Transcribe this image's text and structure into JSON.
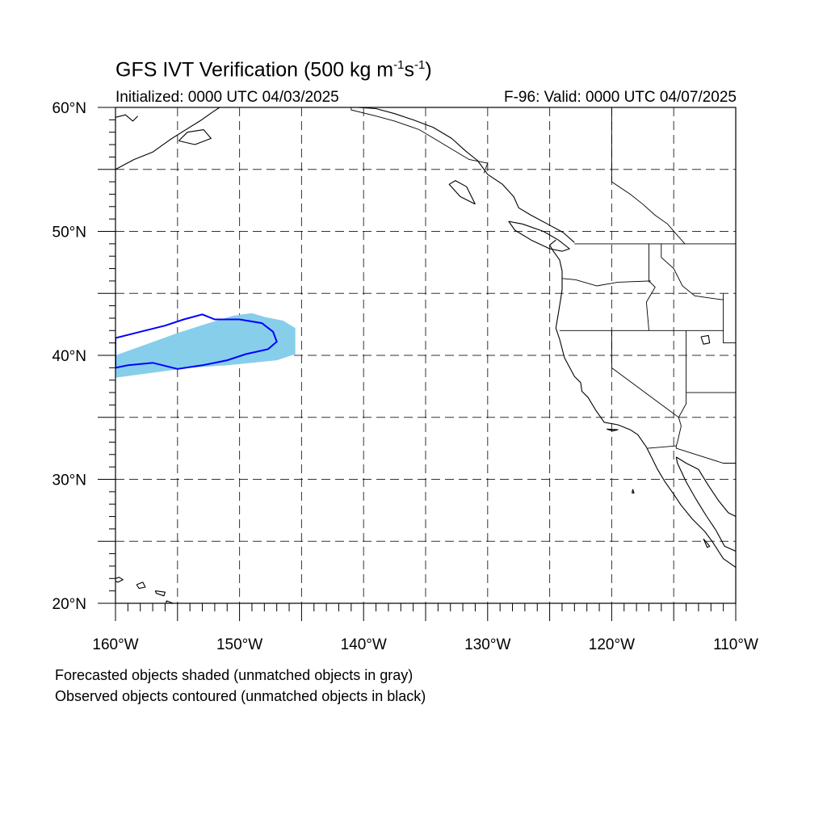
{
  "header": {
    "title_main": "GFS IVT Verification (500 kg m",
    "title_exp1": "-1",
    "title_mid": "s",
    "title_exp2": "-1",
    "title_end": ")",
    "initialized": "Initialized: 0000 UTC 04/03/2025",
    "valid": "F-96: Valid: 0000 UTC 04/07/2025"
  },
  "map": {
    "lon_range": [
      -160,
      -110
    ],
    "lat_range": [
      20,
      60
    ],
    "lat_ticks": [
      {
        "value": 60,
        "label": "60°N"
      },
      {
        "value": 50,
        "label": "50°N"
      },
      {
        "value": 40,
        "label": "40°N"
      },
      {
        "value": 30,
        "label": "30°N"
      },
      {
        "value": 20,
        "label": "20°N"
      }
    ],
    "lon_ticks": [
      {
        "value": -160,
        "label": "160°W"
      },
      {
        "value": -150,
        "label": "150°W"
      },
      {
        "value": -140,
        "label": "140°W"
      },
      {
        "value": -130,
        "label": "130°W"
      },
      {
        "value": -120,
        "label": "120°W"
      },
      {
        "value": -110,
        "label": "110°W"
      }
    ],
    "grid_spacing_deg": 5,
    "grid_style": "dashed",
    "colors": {
      "forecast_matched": "#87ceeb",
      "observed_matched": "#0000ff",
      "coastline": "#000000"
    }
  },
  "forecast_object": {
    "color": "#87ceeb",
    "polygon_lonlat": [
      [
        -160,
        38.2
      ],
      [
        -157,
        38.6
      ],
      [
        -154,
        39.0
      ],
      [
        -151,
        39.2
      ],
      [
        -149,
        39.4
      ],
      [
        -147,
        39.6
      ],
      [
        -145.5,
        40.1
      ],
      [
        -145.5,
        42.2
      ],
      [
        -146.5,
        42.8
      ],
      [
        -148,
        43.1
      ],
      [
        -149,
        43.4
      ],
      [
        -150.5,
        43.2
      ],
      [
        -152.5,
        42.6
      ],
      [
        -155,
        41.8
      ],
      [
        -157.5,
        40.9
      ],
      [
        -160,
        40.0
      ]
    ]
  },
  "observed_object": {
    "color": "#0000ff",
    "polygon_lonlat": [
      [
        -160,
        41.4
      ],
      [
        -158,
        41.9
      ],
      [
        -156,
        42.4
      ],
      [
        -154.5,
        42.9
      ],
      [
        -153,
        43.3
      ],
      [
        -152,
        42.9
      ],
      [
        -150,
        42.9
      ],
      [
        -148.2,
        42.6
      ],
      [
        -147.3,
        41.9
      ],
      [
        -147,
        41.1
      ],
      [
        -147.7,
        40.5
      ],
      [
        -149.5,
        40.1
      ],
      [
        -151,
        39.6
      ],
      [
        -153,
        39.2
      ],
      [
        -155,
        38.9
      ],
      [
        -157,
        39.4
      ],
      [
        -159,
        39.2
      ],
      [
        -160,
        39.0
      ]
    ]
  },
  "coastlines": [
    {
      "name": "west-coast",
      "points_lonlat": [
        [
          -124.5,
          49.3
        ],
        [
          -125.0,
          48.9
        ],
        [
          -124.7,
          48.4
        ],
        [
          -124.2,
          47.7
        ],
        [
          -124.0,
          46.8
        ],
        [
          -124.0,
          46.1
        ],
        [
          -124.0,
          45.3
        ],
        [
          -124.1,
          44.6
        ],
        [
          -124.3,
          43.4
        ],
        [
          -124.5,
          42.2
        ],
        [
          -124.2,
          41.3
        ],
        [
          -123.8,
          39.8
        ],
        [
          -123.0,
          38.3
        ],
        [
          -122.5,
          37.8
        ],
        [
          -122.4,
          37.1
        ],
        [
          -121.9,
          36.6
        ],
        [
          -121.3,
          35.6
        ],
        [
          -120.6,
          34.6
        ],
        [
          -119.5,
          34.4
        ],
        [
          -118.5,
          34.0
        ],
        [
          -117.9,
          33.6
        ],
        [
          -117.2,
          32.6
        ],
        [
          -116.8,
          31.8
        ],
        [
          -116.3,
          30.8
        ],
        [
          -115.7,
          29.8
        ],
        [
          -115.0,
          28.8
        ],
        [
          -114.4,
          27.9
        ],
        [
          -113.5,
          26.8
        ],
        [
          -112.5,
          25.8
        ],
        [
          -111.9,
          25.0
        ],
        [
          -111.0,
          23.6
        ],
        [
          -110.0,
          22.9
        ]
      ]
    },
    {
      "name": "baja-east-coast",
      "points_lonlat": [
        [
          -110.0,
          24.2
        ],
        [
          -110.9,
          24.6
        ],
        [
          -111.6,
          25.9
        ],
        [
          -112.4,
          27.1
        ],
        [
          -113.2,
          28.4
        ],
        [
          -114.0,
          29.8
        ],
        [
          -114.7,
          31.3
        ],
        [
          -114.8,
          31.8
        ]
      ]
    },
    {
      "name": "mainland-mexico-coast",
      "points_lonlat": [
        [
          -114.8,
          31.8
        ],
        [
          -114.0,
          31.3
        ],
        [
          -113.0,
          30.8
        ],
        [
          -112.2,
          29.5
        ],
        [
          -111.4,
          28.3
        ],
        [
          -110.6,
          27.3
        ],
        [
          -110.0,
          27.0
        ]
      ]
    },
    {
      "name": "vancouver-island",
      "points_lonlat": [
        [
          -124.0,
          48.4
        ],
        [
          -125.0,
          48.6
        ],
        [
          -126.5,
          49.3
        ],
        [
          -127.8,
          50.1
        ],
        [
          -128.3,
          50.8
        ],
        [
          -127.2,
          50.6
        ],
        [
          -125.5,
          50.0
        ],
        [
          -124.3,
          49.3
        ],
        [
          -123.4,
          48.6
        ],
        [
          -124.0,
          48.4
        ]
      ]
    },
    {
      "name": "bc-coast",
      "points_lonlat": [
        [
          -123.0,
          49.1
        ],
        [
          -123.9,
          49.9
        ],
        [
          -125.0,
          50.5
        ],
        [
          -126.5,
          51.3
        ],
        [
          -127.5,
          51.9
        ],
        [
          -127.9,
          52.8
        ],
        [
          -128.8,
          53.8
        ],
        [
          -130.0,
          54.6
        ],
        [
          -130.8,
          55.7
        ],
        [
          -131.8,
          56.5
        ],
        [
          -132.9,
          57.5
        ],
        [
          -134.4,
          58.4
        ],
        [
          -136.0,
          59.0
        ],
        [
          -137.5,
          59.5
        ],
        [
          -139.0,
          59.9
        ],
        [
          -140.5,
          60.0
        ]
      ]
    },
    {
      "name": "haida-gwaii",
      "points_lonlat": [
        [
          -131.0,
          52.2
        ],
        [
          -132.2,
          52.8
        ],
        [
          -133.1,
          53.8
        ],
        [
          -132.6,
          54.1
        ],
        [
          -131.7,
          53.6
        ],
        [
          -131.0,
          52.2
        ]
      ]
    },
    {
      "name": "alaska-coast",
      "points_lonlat": [
        [
          -160,
          55.0
        ],
        [
          -158.5,
          55.8
        ],
        [
          -157.0,
          56.4
        ],
        [
          -155.6,
          57.4
        ],
        [
          -154.5,
          58.1
        ],
        [
          -153.2,
          58.9
        ],
        [
          -152.2,
          59.6
        ],
        [
          -151.6,
          60.0
        ]
      ]
    },
    {
      "name": "alaska-west-top",
      "points_lonlat": [
        [
          -160,
          59.2
        ],
        [
          -159.2,
          59.4
        ],
        [
          -158.6,
          58.9
        ],
        [
          -158.2,
          59.3
        ]
      ]
    },
    {
      "name": "kodiak",
      "points_lonlat": [
        [
          -154.9,
          57.3
        ],
        [
          -153.6,
          57.0
        ],
        [
          -152.3,
          57.5
        ],
        [
          -152.9,
          58.2
        ],
        [
          -154.2,
          58.0
        ],
        [
          -154.9,
          57.3
        ]
      ]
    },
    {
      "name": "hawaii-niihau",
      "points_lonlat": [
        [
          -160.3,
          21.9
        ],
        [
          -159.7,
          22.1
        ],
        [
          -159.4,
          21.9
        ],
        [
          -159.8,
          21.7
        ],
        [
          -160.3,
          21.9
        ]
      ]
    },
    {
      "name": "hawaii-oahu",
      "points_lonlat": [
        [
          -158.3,
          21.5
        ],
        [
          -157.8,
          21.7
        ],
        [
          -157.6,
          21.3
        ],
        [
          -158.1,
          21.2
        ],
        [
          -158.3,
          21.5
        ]
      ]
    },
    {
      "name": "hawaii-maui",
      "points_lonlat": [
        [
          -156.8,
          21.0
        ],
        [
          -156.0,
          20.9
        ],
        [
          -156.1,
          20.6
        ],
        [
          -156.7,
          20.8
        ],
        [
          -156.8,
          21.0
        ]
      ]
    },
    {
      "name": "hawaii-big-island",
      "points_lonlat": [
        [
          -155.9,
          20.2
        ],
        [
          -155.1,
          19.9
        ],
        [
          -154.9,
          19.5
        ],
        [
          -155.3,
          19.2
        ],
        [
          -155.9,
          19.5
        ],
        [
          -155.9,
          20.2
        ]
      ]
    },
    {
      "name": "guadalupe-island",
      "points_lonlat": [
        [
          -118.3,
          29.2
        ],
        [
          -118.2,
          28.9
        ],
        [
          -118.35,
          28.9
        ],
        [
          -118.3,
          29.2
        ]
      ]
    },
    {
      "name": "channel-islands",
      "points_lonlat": [
        [
          -120.4,
          34.05
        ],
        [
          -119.5,
          34.0
        ],
        [
          -119.9,
          33.9
        ],
        [
          -120.4,
          34.05
        ]
      ]
    },
    {
      "name": "great-salt-lake",
      "points_lonlat": [
        [
          -112.8,
          41.5
        ],
        [
          -112.2,
          41.6
        ],
        [
          -112.1,
          41.0
        ],
        [
          -112.6,
          40.9
        ],
        [
          -112.8,
          41.5
        ]
      ]
    },
    {
      "name": "baja-southern-islands",
      "points_lonlat": [
        [
          -112.6,
          25.2
        ],
        [
          -112.1,
          24.6
        ],
        [
          -112.3,
          24.5
        ],
        [
          -112.6,
          25.2
        ]
      ]
    }
  ],
  "borders": [
    {
      "name": "us-canada",
      "points_lonlat": [
        [
          -123.0,
          49.0
        ],
        [
          -110.0,
          49.0
        ]
      ]
    },
    {
      "name": "us-canada-alaska",
      "points_lonlat": [
        [
          -141.0,
          60.0
        ],
        [
          -141.0,
          59.8
        ],
        [
          -139.0,
          59.3
        ],
        [
          -137.5,
          58.9
        ],
        [
          -135.5,
          58.2
        ],
        [
          -133.5,
          57.0
        ],
        [
          -131.5,
          55.8
        ],
        [
          -130.0,
          55.5
        ],
        [
          -130.3,
          54.7
        ]
      ]
    },
    {
      "name": "canada-bc-alberta",
      "points_lonlat": [
        [
          -120.0,
          60.0
        ],
        [
          -120.0,
          54.0
        ],
        [
          -118.5,
          53.0
        ],
        [
          -117.5,
          52.2
        ],
        [
          -116.5,
          51.3
        ],
        [
          -115.5,
          50.6
        ],
        [
          -114.1,
          49.0
        ]
      ]
    },
    {
      "name": "wa-or",
      "points_lonlat": [
        [
          -124.0,
          46.2
        ],
        [
          -122.9,
          46.1
        ],
        [
          -121.2,
          45.6
        ],
        [
          -119.5,
          45.9
        ],
        [
          -116.9,
          46.0
        ],
        [
          -117.0,
          45.9
        ]
      ]
    },
    {
      "name": "wa-id",
      "points_lonlat": [
        [
          -117.0,
          49.0
        ],
        [
          -117.0,
          46.0
        ]
      ]
    },
    {
      "name": "or-id",
      "points_lonlat": [
        [
          -117.0,
          46.0
        ],
        [
          -116.5,
          45.5
        ],
        [
          -117.2,
          44.3
        ],
        [
          -117.0,
          42.0
        ]
      ]
    },
    {
      "name": "or-ca-nv-id",
      "points_lonlat": [
        [
          -124.2,
          42.0
        ],
        [
          -111.0,
          42.0
        ]
      ]
    },
    {
      "name": "id-mt",
      "points_lonlat": [
        [
          -116.0,
          49.0
        ],
        [
          -116.0,
          47.9
        ],
        [
          -115.0,
          47.0
        ],
        [
          -114.3,
          45.6
        ],
        [
          -113.3,
          44.8
        ],
        [
          -111.2,
          44.5
        ],
        [
          -111.0,
          44.5
        ]
      ]
    },
    {
      "name": "ca-nv",
      "points_lonlat": [
        [
          -120.0,
          42.0
        ],
        [
          -120.0,
          39.0
        ],
        [
          -114.6,
          35.0
        ]
      ]
    },
    {
      "name": "nv-ut",
      "points_lonlat": [
        [
          -114.0,
          42.0
        ],
        [
          -114.0,
          37.0
        ]
      ]
    },
    {
      "name": "az-ut",
      "points_lonlat": [
        [
          -114.0,
          37.0
        ],
        [
          -110.0,
          37.0
        ]
      ]
    },
    {
      "name": "az-nv-ca",
      "points_lonlat": [
        [
          -114.0,
          37.0
        ],
        [
          -114.0,
          36.1
        ],
        [
          -114.6,
          35.0
        ],
        [
          -114.4,
          34.3
        ],
        [
          -114.7,
          33.0
        ],
        [
          -114.8,
          32.7
        ]
      ]
    },
    {
      "name": "us-mexico",
      "points_lonlat": [
        [
          -117.1,
          32.5
        ],
        [
          -114.8,
          32.7
        ],
        [
          -114.8,
          32.5
        ],
        [
          -111.0,
          31.3
        ],
        [
          -110.0,
          31.3
        ]
      ]
    },
    {
      "name": "wy-id-mt",
      "points_lonlat": [
        [
          -111.0,
          45.0
        ],
        [
          -111.0,
          41.0
        ],
        [
          -110.0,
          41.0
        ]
      ]
    }
  ],
  "legend": {
    "line1": "Forecasted objects shaded (unmatched objects in gray)",
    "line2": "Observed objects contoured (unmatched objects in black)"
  }
}
